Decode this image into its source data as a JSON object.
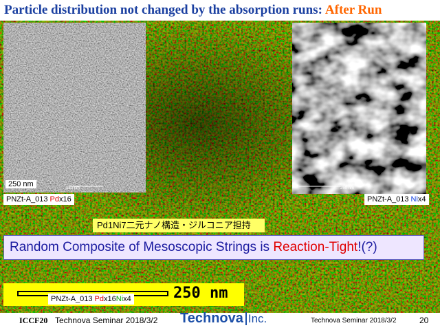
{
  "title": {
    "main": "Particle distribution not changed by the absorption runs:",
    "highlight": "After Run"
  },
  "left_image": {
    "scale_label": "250 nm",
    "scale_small": "250 nm",
    "caption": {
      "prefix": "PNZt-A_013",
      "element": "Pd",
      "suffix": "x16"
    }
  },
  "right_image": {
    "scale_small": "250 nm",
    "caption": {
      "prefix": "PNZt-A_013",
      "element": "Ni",
      "suffix": "x4"
    }
  },
  "structure_label": "Pd1Ni7二元ナノ構造・ジルコニア担持",
  "headline": {
    "before": "Random Composite of Mesoscopic Strings is",
    "highlight": "Reaction-Tight",
    "after": "!(?)"
  },
  "main_image": {
    "scale_label": "250 nm",
    "caption": {
      "prefix": "PNZt-A_013",
      "element1": "Pd",
      "middle": "x16",
      "element2": "Ni",
      "suffix": "x4"
    }
  },
  "footer": {
    "conference": "ICCF20",
    "seminar_left": "Technova Seminar 2018/3/2",
    "logo_main": "Technova",
    "logo_suffix": "Inc.",
    "seminar_right": "Technova Seminar 2018/3/2",
    "page": "20"
  }
}
